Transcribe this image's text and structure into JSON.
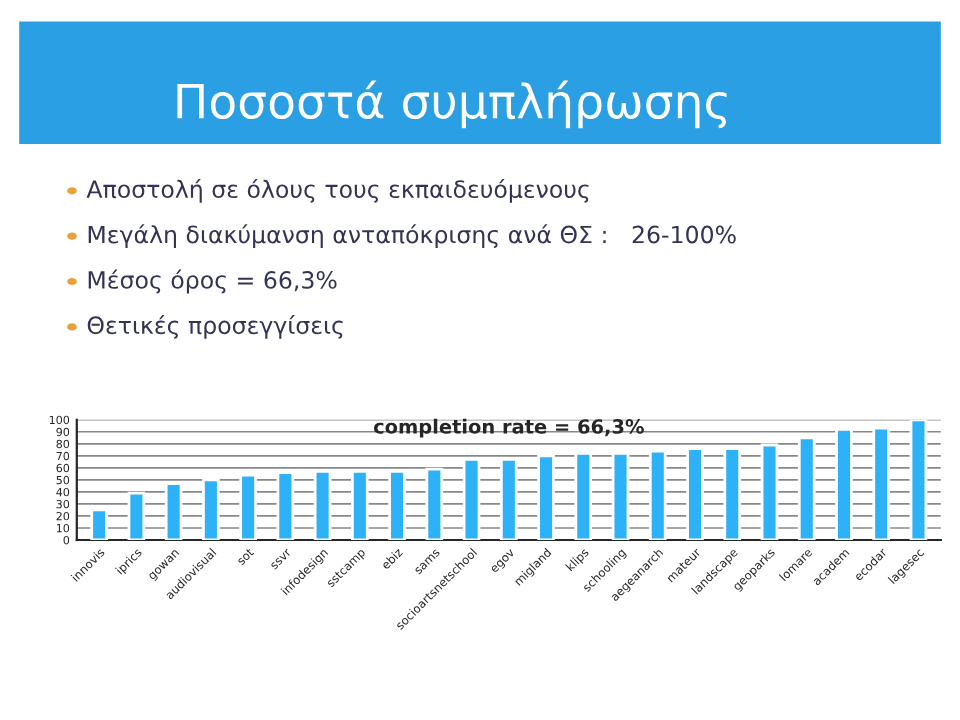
{
  "chart_data": {
    "type": "bar",
    "title": "Ποσοστά συμπλήρωσης",
    "annotations": [
      "Αποστολή σε όλους τους εκπαιδευόμενους",
      "Μεγάλη διακύμανση ανταπόκρισης ανά ΘΣ :   26-100%",
      "Μέσος όρος = 66,3%",
      "Θετικές προσεγγίσεις",
      "completion rate = 66,3%"
    ],
    "categories": [
      "innovis",
      "iprics",
      "gowan",
      "audiovisual",
      "sot",
      "ssvr",
      "infodesign",
      "sstcamp",
      "ebiz",
      "sams",
      "socioartsnetschool",
      "egov",
      "migland",
      "klips",
      "schooling",
      "aegeanarch",
      "mateur",
      "landscape",
      "geoparks",
      "lomare",
      "academ",
      "ecodar",
      "lagesec"
    ],
    "values": [
      25,
      39,
      47,
      50,
      54,
      56,
      57,
      57,
      57,
      59,
      67,
      67,
      70,
      72,
      72,
      74,
      76,
      76,
      79,
      85,
      92,
      93,
      100
    ],
    "color": "#2eb2f7",
    "ylim": [
      0,
      100
    ],
    "yticks": [
      0,
      10,
      20,
      30,
      40,
      50,
      60,
      70,
      80,
      90,
      100
    ],
    "grid": "y"
  }
}
